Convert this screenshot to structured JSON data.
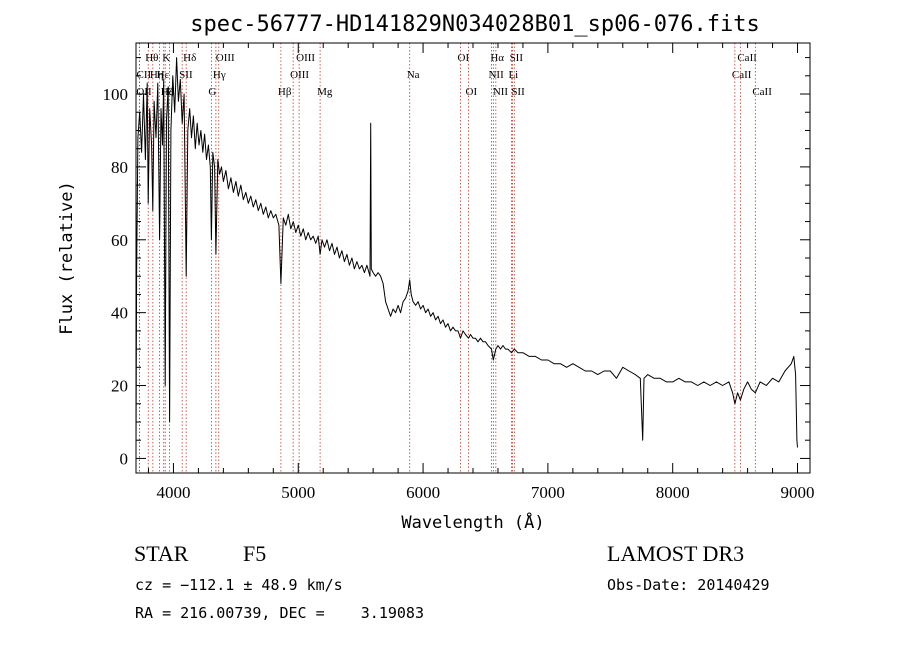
{
  "chart_data": {
    "type": "line",
    "title": "spec-56777-HD141829N034028B01_sp06-076.fits",
    "xlabel": "Wavelength (Å)",
    "ylabel": "Flux (relative)",
    "xlim": [
      3700,
      9100
    ],
    "ylim": [
      -4,
      114
    ],
    "x_ticks": [
      4000,
      5000,
      6000,
      7000,
      8000,
      9000
    ],
    "y_ticks": [
      0,
      20,
      40,
      60,
      80,
      100
    ],
    "grid": false,
    "spectral_lines": [
      {
        "label": "Hθ",
        "wavelength": 3798,
        "row": 0
      },
      {
        "label": "OII",
        "wavelength": 3727,
        "row": 2
      },
      {
        "label": "CII",
        "wavelength": 3728,
        "row": 1
      },
      {
        "label": "Hη",
        "wavelength": 3835,
        "row": 1
      },
      {
        "label": "Hε",
        "wavelength": 3889,
        "row": 1
      },
      {
        "label": "K",
        "wavelength": 3934,
        "row": 0
      },
      {
        "label": "H",
        "wavelength": 3969,
        "row": 2
      },
      {
        "label": "Hδ",
        "wavelength": 4102,
        "row": 0
      },
      {
        "label": "SII",
        "wavelength": 4070,
        "row": 1
      },
      {
        "label": "Hζ",
        "wavelength": 3922,
        "row": 2
      },
      {
        "label": "OIII",
        "wavelength": 4363,
        "row": 0
      },
      {
        "label": "Hγ",
        "wavelength": 4340,
        "row": 1
      },
      {
        "label": "G",
        "wavelength": 4304,
        "row": 2
      },
      {
        "label": "Hβ",
        "wavelength": 4861,
        "row": 2
      },
      {
        "label": "OIII",
        "wavelength": 5007,
        "row": 0
      },
      {
        "label": "OIII",
        "wavelength": 4959,
        "row": 1
      },
      {
        "label": "Mg",
        "wavelength": 5175,
        "row": 2
      },
      {
        "label": "Na",
        "wavelength": 5893,
        "row": 1
      },
      {
        "label": "OI",
        "wavelength": 6300,
        "row": 0
      },
      {
        "label": "OI",
        "wavelength": 6364,
        "row": 2
      },
      {
        "label": "Hα",
        "wavelength": 6563,
        "row": 0
      },
      {
        "label": "NII",
        "wavelength": 6548,
        "row": 1
      },
      {
        "label": "NII",
        "wavelength": 6583,
        "row": 2
      },
      {
        "label": "SII",
        "wavelength": 6717,
        "row": 0
      },
      {
        "label": "Li",
        "wavelength": 6708,
        "row": 1
      },
      {
        "label": "SII",
        "wavelength": 6731,
        "row": 2
      },
      {
        "label": "CaII",
        "wavelength": 8542,
        "row": 0
      },
      {
        "label": "CaII",
        "wavelength": 8498,
        "row": 1
      },
      {
        "label": "CaII",
        "wavelength": 8662,
        "row": 2
      }
    ],
    "series": [
      {
        "name": "flux",
        "points": [
          [
            3700,
            2
          ],
          [
            3705,
            50
          ],
          [
            3715,
            88
          ],
          [
            3730,
            95
          ],
          [
            3745,
            84
          ],
          [
            3760,
            100
          ],
          [
            3775,
            82
          ],
          [
            3790,
            103
          ],
          [
            3798,
            70
          ],
          [
            3810,
            96
          ],
          [
            3825,
            86
          ],
          [
            3835,
            68
          ],
          [
            3845,
            98
          ],
          [
            3860,
            88
          ],
          [
            3875,
            103
          ],
          [
            3889,
            60
          ],
          [
            3900,
            96
          ],
          [
            3912,
            86
          ],
          [
            3922,
            104
          ],
          [
            3934,
            20
          ],
          [
            3944,
            93
          ],
          [
            3958,
            102
          ],
          [
            3969,
            10
          ],
          [
            3980,
            90
          ],
          [
            3995,
            105
          ],
          [
            4010,
            95
          ],
          [
            4025,
            110
          ],
          [
            4040,
            98
          ],
          [
            4055,
            104
          ],
          [
            4070,
            92
          ],
          [
            4085,
            100
          ],
          [
            4102,
            50
          ],
          [
            4115,
            90
          ],
          [
            4130,
            96
          ],
          [
            4145,
            88
          ],
          [
            4160,
            94
          ],
          [
            4175,
            85
          ],
          [
            4190,
            92
          ],
          [
            4205,
            86
          ],
          [
            4220,
            90
          ],
          [
            4235,
            84
          ],
          [
            4250,
            89
          ],
          [
            4265,
            82
          ],
          [
            4280,
            86
          ],
          [
            4295,
            80
          ],
          [
            4304,
            60
          ],
          [
            4315,
            84
          ],
          [
            4330,
            80
          ],
          [
            4340,
            56
          ],
          [
            4355,
            82
          ],
          [
            4370,
            78
          ],
          [
            4385,
            80
          ],
          [
            4400,
            76
          ],
          [
            4420,
            79
          ],
          [
            4440,
            74
          ],
          [
            4460,
            77
          ],
          [
            4480,
            73
          ],
          [
            4500,
            76
          ],
          [
            4520,
            72
          ],
          [
            4540,
            75
          ],
          [
            4560,
            71
          ],
          [
            4580,
            73
          ],
          [
            4600,
            70
          ],
          [
            4620,
            72
          ],
          [
            4640,
            69
          ],
          [
            4660,
            71
          ],
          [
            4680,
            68
          ],
          [
            4700,
            70
          ],
          [
            4720,
            67
          ],
          [
            4740,
            69
          ],
          [
            4760,
            66
          ],
          [
            4780,
            68
          ],
          [
            4800,
            66
          ],
          [
            4820,
            67
          ],
          [
            4845,
            64
          ],
          [
            4861,
            48
          ],
          [
            4880,
            66
          ],
          [
            4900,
            64
          ],
          [
            4920,
            67
          ],
          [
            4940,
            63
          ],
          [
            4960,
            65
          ],
          [
            4980,
            62
          ],
          [
            5000,
            64
          ],
          [
            5020,
            61
          ],
          [
            5040,
            63
          ],
          [
            5060,
            60
          ],
          [
            5080,
            62
          ],
          [
            5100,
            60
          ],
          [
            5120,
            61
          ],
          [
            5140,
            59
          ],
          [
            5160,
            61
          ],
          [
            5175,
            56
          ],
          [
            5190,
            60
          ],
          [
            5210,
            58
          ],
          [
            5230,
            60
          ],
          [
            5250,
            57
          ],
          [
            5270,
            59
          ],
          [
            5290,
            56
          ],
          [
            5310,
            58
          ],
          [
            5330,
            55
          ],
          [
            5350,
            57
          ],
          [
            5370,
            54
          ],
          [
            5390,
            56
          ],
          [
            5410,
            53
          ],
          [
            5430,
            55
          ],
          [
            5450,
            52
          ],
          [
            5470,
            54
          ],
          [
            5490,
            52
          ],
          [
            5510,
            53
          ],
          [
            5530,
            51
          ],
          [
            5550,
            53
          ],
          [
            5575,
            50
          ],
          [
            5580,
            92
          ],
          [
            5585,
            52
          ],
          [
            5600,
            51
          ],
          [
            5620,
            50
          ],
          [
            5640,
            51
          ],
          [
            5660,
            50
          ],
          [
            5680,
            48
          ],
          [
            5700,
            43
          ],
          [
            5720,
            41
          ],
          [
            5740,
            39
          ],
          [
            5760,
            41
          ],
          [
            5780,
            40
          ],
          [
            5800,
            42
          ],
          [
            5820,
            40
          ],
          [
            5840,
            43
          ],
          [
            5860,
            44
          ],
          [
            5880,
            46
          ],
          [
            5893,
            49
          ],
          [
            5905,
            45
          ],
          [
            5920,
            43
          ],
          [
            5940,
            42
          ],
          [
            5960,
            43
          ],
          [
            5980,
            41
          ],
          [
            6000,
            42
          ],
          [
            6020,
            40
          ],
          [
            6040,
            41
          ],
          [
            6060,
            39
          ],
          [
            6080,
            40
          ],
          [
            6100,
            38
          ],
          [
            6120,
            39
          ],
          [
            6140,
            37
          ],
          [
            6160,
            38
          ],
          [
            6180,
            36
          ],
          [
            6200,
            37
          ],
          [
            6220,
            35
          ],
          [
            6240,
            36
          ],
          [
            6260,
            35
          ],
          [
            6280,
            35
          ],
          [
            6300,
            33
          ],
          [
            6320,
            35
          ],
          [
            6340,
            34
          ],
          [
            6364,
            33
          ],
          [
            6380,
            34
          ],
          [
            6400,
            33
          ],
          [
            6420,
            33
          ],
          [
            6440,
            32
          ],
          [
            6460,
            33
          ],
          [
            6480,
            32
          ],
          [
            6500,
            32
          ],
          [
            6520,
            31
          ],
          [
            6548,
            30
          ],
          [
            6563,
            27
          ],
          [
            6583,
            30
          ],
          [
            6600,
            31
          ],
          [
            6620,
            30
          ],
          [
            6640,
            31
          ],
          [
            6660,
            30
          ],
          [
            6680,
            30
          ],
          [
            6708,
            29
          ],
          [
            6731,
            30
          ],
          [
            6760,
            29
          ],
          [
            6800,
            29
          ],
          [
            6850,
            28
          ],
          [
            6900,
            28
          ],
          [
            6950,
            27
          ],
          [
            7000,
            27
          ],
          [
            7050,
            26
          ],
          [
            7100,
            26
          ],
          [
            7150,
            25
          ],
          [
            7200,
            26
          ],
          [
            7250,
            25
          ],
          [
            7300,
            24
          ],
          [
            7350,
            24
          ],
          [
            7400,
            23
          ],
          [
            7450,
            24
          ],
          [
            7500,
            24
          ],
          [
            7550,
            22
          ],
          [
            7600,
            25
          ],
          [
            7650,
            24
          ],
          [
            7700,
            23
          ],
          [
            7740,
            22
          ],
          [
            7760,
            5
          ],
          [
            7770,
            22
          ],
          [
            7800,
            23
          ],
          [
            7850,
            22
          ],
          [
            7900,
            22
          ],
          [
            7950,
            21
          ],
          [
            8000,
            21
          ],
          [
            8050,
            22
          ],
          [
            8100,
            21
          ],
          [
            8150,
            21
          ],
          [
            8200,
            20
          ],
          [
            8250,
            21
          ],
          [
            8300,
            20
          ],
          [
            8350,
            21
          ],
          [
            8400,
            20
          ],
          [
            8450,
            21
          ],
          [
            8480,
            18
          ],
          [
            8498,
            15
          ],
          [
            8520,
            18
          ],
          [
            8542,
            16
          ],
          [
            8570,
            19
          ],
          [
            8600,
            21
          ],
          [
            8630,
            19
          ],
          [
            8662,
            18
          ],
          [
            8700,
            21
          ],
          [
            8750,
            20
          ],
          [
            8800,
            22
          ],
          [
            8850,
            21
          ],
          [
            8900,
            24
          ],
          [
            8950,
            26
          ],
          [
            8970,
            28
          ],
          [
            8985,
            23
          ],
          [
            8995,
            5
          ],
          [
            9000,
            3
          ]
        ]
      }
    ]
  },
  "info": {
    "object_type": "STAR",
    "subclass": "F5",
    "survey": "LAMOST DR3",
    "redshift_line": "cz = −112.1 ± 48.9 km/s",
    "obs_date_line": "Obs-Date: 20140429",
    "coords_line": "RA = 216.00739, DEC =    3.19083"
  },
  "colors": {
    "spectrum": "#000000",
    "line_markers": "#c0392b",
    "axes": "#000000",
    "background": "#ffffff"
  }
}
